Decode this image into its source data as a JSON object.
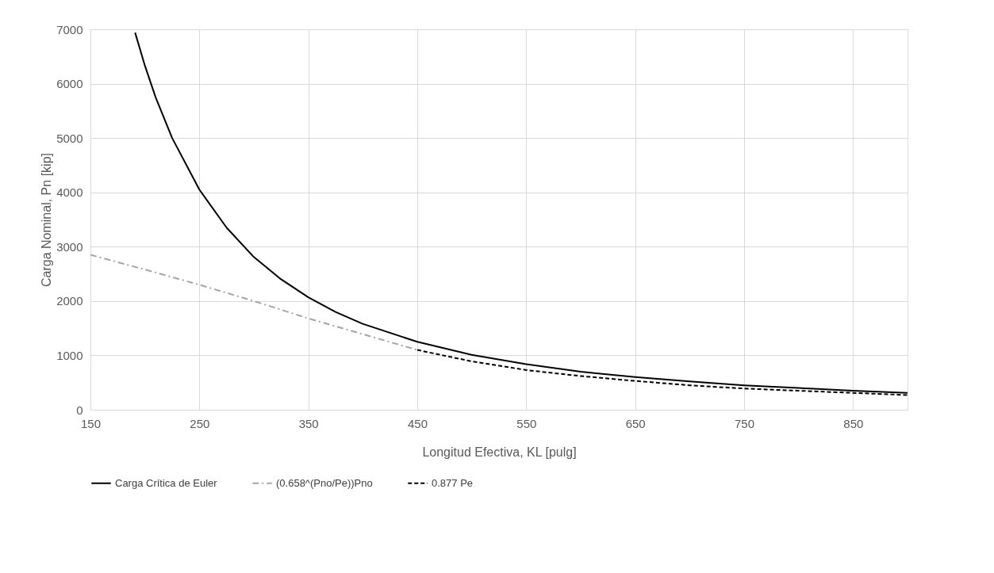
{
  "chart_data": {
    "type": "line",
    "xlabel": "Longitud Efectiva, KL [pulg]",
    "ylabel": "Carga Nominal, Pn [kip]",
    "xlim": [
      150,
      900
    ],
    "xticks": [
      150,
      250,
      350,
      450,
      550,
      650,
      750,
      850
    ],
    "ylim": [
      0,
      7000
    ],
    "yticks": [
      0,
      1000,
      2000,
      3000,
      4000,
      5000,
      6000,
      7000
    ],
    "grid": true,
    "legend": "bottom",
    "marker": "none",
    "series": [
      {
        "name": "Carga Crítica de Euler",
        "color": "#000000",
        "line_style": "solid",
        "x": [
          191,
          200,
          210,
          225,
          250,
          275,
          300,
          325,
          350,
          375,
          400,
          450,
          500,
          550,
          600,
          650,
          700,
          750,
          800,
          850,
          900
        ],
        "values": [
          6940,
          6330,
          5740,
          5000,
          4050,
          3350,
          2810,
          2400,
          2070,
          1800,
          1580,
          1250,
          1010,
          840,
          700,
          600,
          520,
          450,
          400,
          350,
          310
        ]
      },
      {
        "name": "(0.658^(Pno/Pe))Pno",
        "color": "#a5a5a5",
        "line_style": "dashdot",
        "x": [
          150,
          200,
          250,
          300,
          350,
          400,
          450
        ],
        "values": [
          2850,
          2580,
          2300,
          2000,
          1680,
          1390,
          1100
        ]
      },
      {
        "name": "0.877 Pe",
        "color": "#000000",
        "line_style": "dashed",
        "x": [
          450,
          500,
          550,
          600,
          650,
          700,
          750,
          800,
          850,
          900
        ],
        "values": [
          1100,
          890,
          730,
          620,
          530,
          450,
          390,
          350,
          310,
          270
        ]
      }
    ]
  }
}
